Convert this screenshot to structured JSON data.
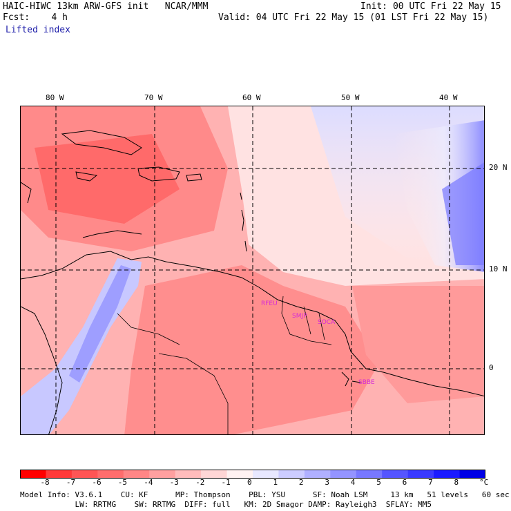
{
  "header": {
    "title": "HAIC-HIWC 13km ARW-GFS init   NCAR/MMM",
    "init": "Init: 00 UTC Fri 22 May 15",
    "fcst": "Fcst:    4 h",
    "valid": "Valid: 04 UTC Fri 22 May 15 (01 LST Fri 22 May 15)",
    "field": "Lifted index"
  },
  "map": {
    "lon_labels": [
      "80 W",
      "70 W",
      "60 W",
      "50 W",
      "40 W"
    ],
    "lat_labels": [
      "20 N",
      "10 N",
      "0"
    ],
    "stations": [
      "RFEU",
      "SMJP",
      "SOCA",
      "SBBE"
    ]
  },
  "colorbar": {
    "labels": [
      "-8",
      "-7",
      "-6",
      "-5",
      "-4",
      "-3",
      "-2",
      "-1",
      "0",
      "1",
      "2",
      "3",
      "4",
      "5",
      "6",
      "7",
      "8"
    ],
    "unit": "°C",
    "colors": [
      "#ff0000",
      "#ff3a3a",
      "#ff5555",
      "#ff6d6d",
      "#ff8686",
      "#ffa0a0",
      "#ffbcbc",
      "#ffd6d6",
      "#fff2f2",
      "#e8e8ff",
      "#ccccff",
      "#b0b0ff",
      "#9494ff",
      "#7878ff",
      "#5555ff",
      "#3a3aff",
      "#1a1aff",
      "#0000e6"
    ]
  },
  "footer": {
    "line1": "Model Info: V3.6.1    CU: KF      MP: Thompson    PBL: YSU      SF: Noah LSM     13 km   51 levels   60 sec",
    "line2": "            LW: RRTMG    SW: RRTMG  DIFF: full   KM: 2D Smagor DAMP: Rayleigh3  SFLAY: MM5"
  }
}
